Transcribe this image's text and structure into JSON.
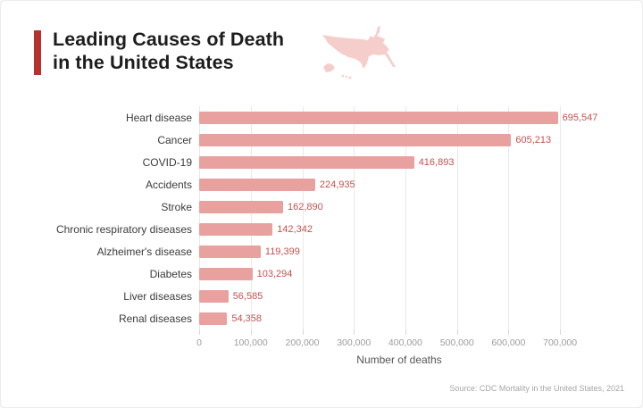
{
  "header": {
    "title_line1": "Leading Causes of Death",
    "title_line2": "in the United States"
  },
  "chart_data": {
    "type": "bar",
    "orientation": "horizontal",
    "title": "Leading Causes of Death in the United States",
    "categories": [
      "Heart disease",
      "Cancer",
      "COVID-19",
      "Accidents",
      "Stroke",
      "Chronic respiratory diseases",
      "Alzheimer's disease",
      "Diabetes",
      "Liver diseases",
      "Renal diseases"
    ],
    "values": [
      695547,
      605213,
      416893,
      224935,
      162890,
      142342,
      119399,
      103294,
      56585,
      54358
    ],
    "value_labels": [
      "695,547",
      "605,213",
      "416,893",
      "224,935",
      "162,890",
      "142,342",
      "119,399",
      "103,294",
      "56,585",
      "54,358"
    ],
    "xlabel": "Number of deaths",
    "ylabel": "",
    "x_tick_values": [
      0,
      100000,
      200000,
      300000,
      400000,
      500000,
      600000,
      700000
    ],
    "x_tick_labels": [
      "0",
      "100,000",
      "200,000",
      "300,000",
      "400,000",
      "500,000",
      "600,000",
      "700,000"
    ],
    "xlim": [
      0,
      776000
    ],
    "grid": true,
    "legend": false
  },
  "footer": {
    "source": "Source: CDC Mortality in the United States, 2021"
  },
  "colors": {
    "bar": "#e8a19e",
    "value_label": "#c4524e",
    "accent_bar": "#b5322f",
    "map": "#f5cecb",
    "title_text": "#1d1d1d",
    "category_label": "#3b3b3b",
    "tick_label": "#9c9c9c",
    "axis_label": "#555555",
    "gridline": "#e9e9e9",
    "source_text": "#a6a6a6"
  }
}
